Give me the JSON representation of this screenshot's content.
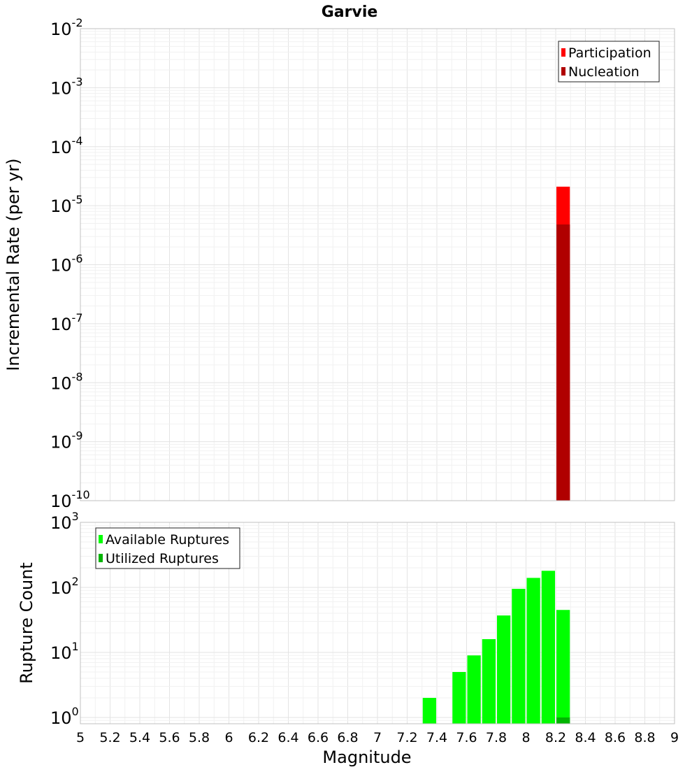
{
  "title": "Garvie",
  "colors": {
    "participation": "#ff0000",
    "nucleation": "#b00000",
    "available": "#00ff00",
    "utilized": "#00b400",
    "grid": "#e6e6e6",
    "plot_border": "#c0c0c0"
  },
  "chart_data": [
    {
      "type": "bar",
      "name": "rate-plot",
      "title": "Garvie",
      "xlabel": "",
      "ylabel": "Incremental Rate (per yr)",
      "yscale": "log",
      "xlim": [
        5,
        9
      ],
      "ylim": [
        1e-10,
        0.01
      ],
      "y_ticks": [
        {
          "base": "10",
          "exp": "-10",
          "value": 1e-10
        },
        {
          "base": "10",
          "exp": "-9",
          "value": 1e-09
        },
        {
          "base": "10",
          "exp": "-8",
          "value": 1e-08
        },
        {
          "base": "10",
          "exp": "-7",
          "value": 1e-07
        },
        {
          "base": "10",
          "exp": "-6",
          "value": 1e-06
        },
        {
          "base": "10",
          "exp": "-5",
          "value": 1e-05
        },
        {
          "base": "10",
          "exp": "-4",
          "value": 0.0001
        },
        {
          "base": "10",
          "exp": "-3",
          "value": 0.001
        },
        {
          "base": "10",
          "exp": "-2",
          "value": 0.01
        }
      ],
      "legend": {
        "position": "top-right",
        "entries": [
          "Participation",
          "Nucleation"
        ]
      },
      "grid": true,
      "bin_width": 0.1,
      "series": [
        {
          "name": "Participation",
          "x": [
            8.25
          ],
          "values": [
            2.1e-05
          ]
        },
        {
          "name": "Nucleation",
          "x": [
            8.25
          ],
          "values": [
            4.8e-06
          ]
        }
      ]
    },
    {
      "type": "bar",
      "name": "count-plot",
      "xlabel": "Magnitude",
      "ylabel": "Rupture Count",
      "yscale": "log",
      "xlim": [
        5,
        9
      ],
      "ylim": [
        0.8,
        1000
      ],
      "y_ticks": [
        {
          "base": "10",
          "exp": "0",
          "value": 1
        },
        {
          "base": "10",
          "exp": "1",
          "value": 10
        },
        {
          "base": "10",
          "exp": "2",
          "value": 100
        },
        {
          "base": "10",
          "exp": "3",
          "value": 1000
        }
      ],
      "x_ticks": [
        "5",
        "5.2",
        "5.4",
        "5.6",
        "5.8",
        "6",
        "6.2",
        "6.4",
        "6.6",
        "6.8",
        "7",
        "7.2",
        "7.4",
        "7.6",
        "7.8",
        "8",
        "8.2",
        "8.4",
        "8.6",
        "8.8",
        "9"
      ],
      "legend": {
        "position": "top-left",
        "entries": [
          "Available Ruptures",
          "Utilized Ruptures"
        ]
      },
      "grid": true,
      "bin_width": 0.1,
      "series": [
        {
          "name": "Available Ruptures",
          "x": [
            7.35,
            7.55,
            7.65,
            7.75,
            7.85,
            7.95,
            8.05,
            8.15,
            8.25
          ],
          "values": [
            2,
            5,
            9,
            16,
            37,
            95,
            140,
            180,
            45
          ]
        },
        {
          "name": "Utilized Ruptures",
          "x": [
            8.25
          ],
          "values": [
            1
          ]
        }
      ]
    }
  ]
}
